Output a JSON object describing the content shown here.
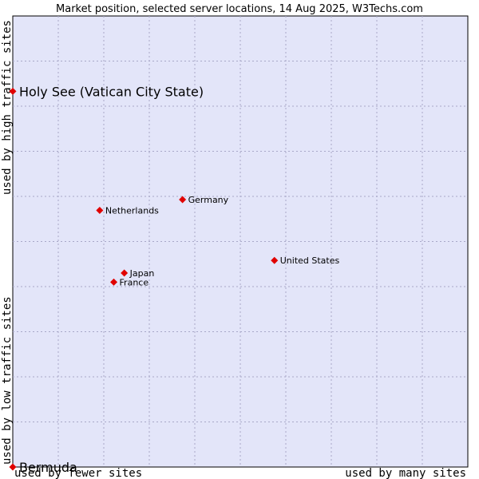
{
  "chart_data": {
    "type": "scatter",
    "title": "Market position, selected server locations, 14 Aug 2025, W3Techs.com",
    "xlabel_left": "used by fewer sites",
    "xlabel_right": "used by many sites",
    "ylabel_bottom": "used by low traffic sites",
    "ylabel_top": "used by high traffic sites",
    "xlim": [
      0,
      100
    ],
    "ylim": [
      0,
      100
    ],
    "grid": true,
    "colors": {
      "plot_background": "#e3e5f9",
      "grid": "#a8a8c8",
      "marker": "#e00000",
      "frame": "#000000"
    },
    "points": [
      {
        "name": "Holy See (Vatican City State)",
        "x": 0,
        "y": 83.3,
        "emphasis": true
      },
      {
        "name": "Bermuda",
        "x": 0,
        "y": 0,
        "emphasis": true
      },
      {
        "name": "Germany",
        "x": 37.3,
        "y": 59.3
      },
      {
        "name": "Netherlands",
        "x": 19.1,
        "y": 56.9
      },
      {
        "name": "United States",
        "x": 57.5,
        "y": 45.8
      },
      {
        "name": "Japan",
        "x": 24.5,
        "y": 43.0
      },
      {
        "name": "France",
        "x": 22.2,
        "y": 41.0
      }
    ]
  }
}
